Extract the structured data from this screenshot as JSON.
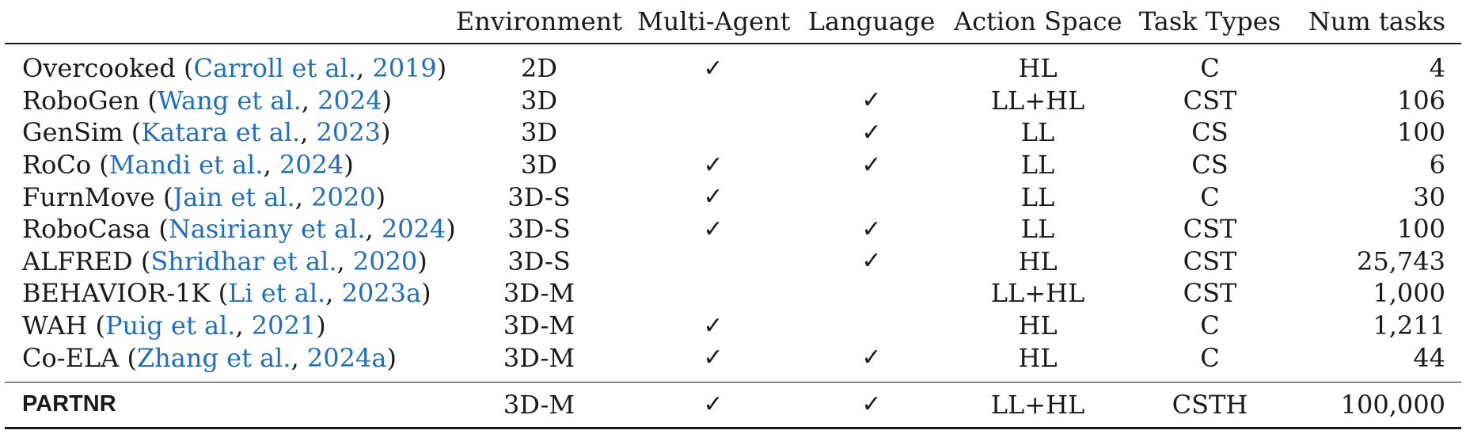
{
  "header": {
    "environment": "Environment",
    "multi_agent": "Multi-Agent",
    "language": "Language",
    "action_space": "Action Space",
    "task_types": "Task Types",
    "num_tasks": "Num tasks"
  },
  "check_symbol": "✓",
  "rows": [
    {
      "name": "Overcooked",
      "cite_authors": "Carroll et al.",
      "cite_year": "2019",
      "environment": "2D",
      "multi_agent": "✓",
      "language": "",
      "action_space": "HL",
      "task_types": "C",
      "num_tasks": "4"
    },
    {
      "name": "RoboGen",
      "cite_authors": "Wang et al.",
      "cite_year": "2024",
      "environment": "3D",
      "multi_agent": "",
      "language": "✓",
      "action_space": "LL+HL",
      "task_types": "CST",
      "num_tasks": "106"
    },
    {
      "name": "GenSim",
      "cite_authors": "Katara et al.",
      "cite_year": "2023",
      "environment": "3D",
      "multi_agent": "",
      "language": "✓",
      "action_space": "LL",
      "task_types": "CS",
      "num_tasks": "100"
    },
    {
      "name": "RoCo",
      "cite_authors": "Mandi et al.",
      "cite_year": "2024",
      "environment": "3D",
      "multi_agent": "✓",
      "language": "✓",
      "action_space": "LL",
      "task_types": "CS",
      "num_tasks": "6"
    },
    {
      "name": "FurnMove",
      "cite_authors": "Jain et al.",
      "cite_year": "2020",
      "environment": "3D-S",
      "multi_agent": "✓",
      "language": "",
      "action_space": "LL",
      "task_types": "C",
      "num_tasks": "30"
    },
    {
      "name": "RoboCasa",
      "cite_authors": "Nasiriany et al.",
      "cite_year": "2024",
      "environment": "3D-S",
      "multi_agent": "✓",
      "language": "✓",
      "action_space": "LL",
      "task_types": "CST",
      "num_tasks": "100"
    },
    {
      "name": "ALFRED",
      "cite_authors": "Shridhar et al.",
      "cite_year": "2020",
      "environment": "3D-S",
      "multi_agent": "",
      "language": "✓",
      "action_space": "HL",
      "task_types": "CST",
      "num_tasks": "25,743"
    },
    {
      "name": "BEHAVIOR-1K",
      "cite_authors": "Li et al.",
      "cite_year": "2023a",
      "environment": "3D-M",
      "multi_agent": "",
      "language": "",
      "action_space": "LL+HL",
      "task_types": "CST",
      "num_tasks": "1,000"
    },
    {
      "name": "WAH",
      "cite_authors": "Puig et al.",
      "cite_year": "2021",
      "environment": "3D-M",
      "multi_agent": "✓",
      "language": "",
      "action_space": "HL",
      "task_types": "C",
      "num_tasks": "1,211"
    },
    {
      "name": "Co-ELA",
      "cite_authors": "Zhang et al.",
      "cite_year": "2024a",
      "environment": "3D-M",
      "multi_agent": "✓",
      "language": "✓",
      "action_space": "HL",
      "task_types": "C",
      "num_tasks": "44"
    }
  ],
  "ours": {
    "name": "PARTNR",
    "environment": "3D-M",
    "multi_agent": "✓",
    "language": "✓",
    "action_space": "LL+HL",
    "task_types": "CSTH",
    "num_tasks": "100,000"
  },
  "colors": {
    "citation": "#1f6fc0",
    "text": "#1a1a1a"
  }
}
